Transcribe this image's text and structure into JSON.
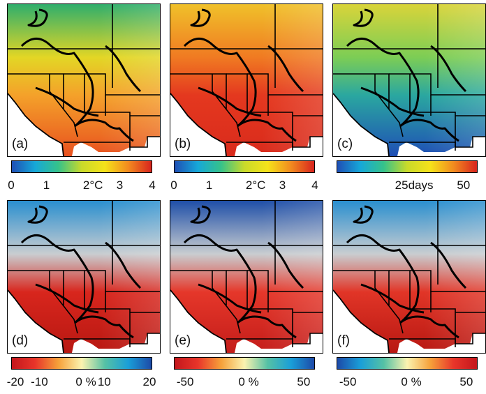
{
  "panels": [
    {
      "label": "(a)"
    },
    {
      "label": "(b)"
    },
    {
      "label": "(c)"
    },
    {
      "label": "(d)"
    },
    {
      "label": "(e)"
    },
    {
      "label": "(f)"
    }
  ],
  "colorbars": [
    {
      "ticks": [
        "0",
        "1",
        "2°C",
        "3",
        "4"
      ],
      "gradient": [
        "#1f4fb5",
        "#16a8d8",
        "#36c28a",
        "#c9da2a",
        "#f5e21a",
        "#f28b1f",
        "#d8241e"
      ]
    },
    {
      "ticks": [
        "0",
        "1",
        "2°C",
        "3",
        "4"
      ],
      "gradient": [
        "#1f4fb5",
        "#16a8d8",
        "#36c28a",
        "#c9da2a",
        "#f5e21a",
        "#f28b1f",
        "#d8241e"
      ]
    },
    {
      "ticks": [
        "25days",
        "50"
      ],
      "gradient": [
        "#1f4fb5",
        "#16a8d8",
        "#36c28a",
        "#c9da2a",
        "#f5e21a",
        "#f28b1f",
        "#d8241e"
      ]
    },
    {
      "ticks": [
        "-20",
        "-10",
        "0 %",
        "10",
        "20"
      ],
      "gradient": [
        "#c4161c",
        "#e8352a",
        "#f6a13a",
        "#fbf3b0",
        "#55c1a5",
        "#1a9fd8",
        "#1d4aa8"
      ]
    },
    {
      "ticks": [
        "-50",
        "0 %",
        "50"
      ],
      "gradient": [
        "#c4161c",
        "#e8352a",
        "#f6a13a",
        "#fbf3b0",
        "#55c1a5",
        "#1a9fd8",
        "#1d4aa8"
      ]
    },
    {
      "ticks": [
        "-50",
        "0 %",
        "50"
      ],
      "gradient": [
        "#1d4aa8",
        "#1a9fd8",
        "#55c1a5",
        "#fbf3b0",
        "#f6a13a",
        "#e8352a",
        "#c4161c"
      ]
    }
  ],
  "map_fills": {
    "a": [
      "#2fae6c",
      "#e3d625",
      "#f4a12a",
      "#e8511f"
    ],
    "b": [
      "#f0c12a",
      "#f07a22",
      "#e4381f",
      "#d92b1c"
    ],
    "c": [
      "#d9d43a",
      "#7ccd55",
      "#2aa7a0",
      "#1f4fb5"
    ],
    "d": [
      "#2a8fcf",
      "#c9cdd0",
      "#d8261d",
      "#b81812"
    ],
    "e": [
      "#1f4fa8",
      "#c9cdd0",
      "#e5372a",
      "#c41d1a"
    ],
    "f": [
      "#2a8fcf",
      "#c9cdd0",
      "#e13527",
      "#b81812"
    ]
  }
}
